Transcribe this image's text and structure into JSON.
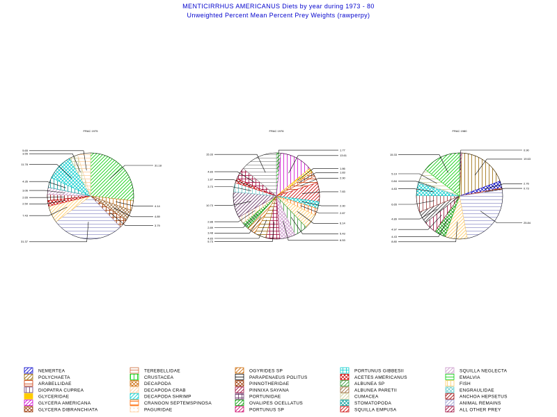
{
  "title": "MENTICIRRHUS AMERICANUS Diets by year during 1973 - 80",
  "subtitle": "Unweighted Percent Mean Percent Prey  Weights (rawperpy)",
  "chart_data": [
    {
      "type": "pie",
      "title": "FRAC 1975",
      "slices": [
        {
          "label": "CRUSTACEA",
          "value": 31.18,
          "color": "#00cc00"
        },
        {
          "label": "DECAPODA",
          "value": 4.14,
          "color": "#cc6600"
        },
        {
          "label": "ALBUNEA PARETII",
          "value": 4.89,
          "color": "#996633"
        },
        {
          "label": "PINNOTHERIDAE",
          "value": 3.79,
          "color": "#993300"
        },
        {
          "label": "ANIMAL REMAINS",
          "value": 31.37,
          "color": "#9999cc"
        },
        {
          "label": "FISH",
          "value": 7.43,
          "color": "#ffcc66"
        },
        {
          "label": "SQUILLA EMPUSA",
          "value": 2.5,
          "color": "#cc0000"
        },
        {
          "label": "ANCHOA HEPSETUS",
          "value": 2.65,
          "color": "#990000"
        },
        {
          "label": "SQUILLA NEGLECTA",
          "value": 3.06,
          "color": "#cc99cc"
        },
        {
          "label": "STOMATOPODA",
          "value": 4.35,
          "color": "#009999"
        },
        {
          "label": "PORTUNUS GIBBESII",
          "value": 11.78,
          "color": "#00cccc"
        },
        {
          "label": "CUMACEA",
          "value": 3.55,
          "color": "#cccc99"
        },
        {
          "label": "DECAPODA CRAB",
          "value": 5.65,
          "color": "#ffcc99"
        }
      ]
    },
    {
      "type": "pie",
      "title": "FRAC 1976",
      "slices": [
        {
          "label": "CRUSTACEA",
          "value": 1.77,
          "color": "#00cc00"
        },
        {
          "label": "GLYCERA AMERICANA",
          "value": 13.61,
          "color": "#cc00cc"
        },
        {
          "label": "GLYCERIDAE",
          "value": 1.86,
          "color": "#ffcc00"
        },
        {
          "label": "TEREBELLIDAE",
          "value": 1.83,
          "color": "#cc6633"
        },
        {
          "label": "ARABELLIDAE",
          "value": 2.9,
          "color": "#cc3300"
        },
        {
          "label": "ACETES AMERICANUS",
          "value": 7.83,
          "color": "#cc0000"
        },
        {
          "label": "DECAPODA SHRIMP",
          "value": 2.9,
          "color": "#00cccc"
        },
        {
          "label": "CRANGON SEPTEMSPINOSA",
          "value": 2.87,
          "color": "#ff6600"
        },
        {
          "label": "FISH",
          "value": 6.14,
          "color": "#ffcc66"
        },
        {
          "label": "ALBUNEA SP",
          "value": 5.43,
          "color": "#339933"
        },
        {
          "label": "SQUILLA NEGLECTA",
          "value": 6.53,
          "color": "#cc99cc"
        },
        {
          "label": "PINNIXA SAYANA",
          "value": 5.73,
          "color": "#990033"
        },
        {
          "label": "POLYCHAETA",
          "value": 4.83,
          "color": "#996600"
        },
        {
          "label": "OGYRIDES SP",
          "value": 3.48,
          "color": "#cc6600"
        },
        {
          "label": "OVALIPES OCELLATUS",
          "value": 2.89,
          "color": "#009900"
        },
        {
          "label": "PAGURIDAE",
          "value": 2.88,
          "color": "#ffcc99"
        },
        {
          "label": "PORTUNIDAE",
          "value": 10.73,
          "color": "#663366"
        },
        {
          "label": "ENGRAULIDAE",
          "value": 3.73,
          "color": "#66cccc"
        },
        {
          "label": "SQUILLA EMPUSA",
          "value": 1.87,
          "color": "#cc0000"
        },
        {
          "label": "ALL OTHER PREY",
          "value": 4.83,
          "color": "#990033"
        },
        {
          "label": "ANIMAL REMAINS",
          "value": 15.33,
          "color": "#999999"
        }
      ]
    },
    {
      "type": "pie",
      "title": "FRAC 1980",
      "slices": [
        {
          "label": "GLYCERA AMERICANA",
          "value": 0.9,
          "color": "#cc00cc"
        },
        {
          "label": "POLYCHAETA",
          "value": 19.63,
          "color": "#996600"
        },
        {
          "label": "NEMERTEA",
          "value": 2.76,
          "color": "#0000cc"
        },
        {
          "label": "ARABELLIDAE",
          "value": 0.73,
          "color": "#cc3300"
        },
        {
          "label": "ANIMAL REMAINS",
          "value": 25.84,
          "color": "#9999cc"
        },
        {
          "label": "FISH",
          "value": 8.8,
          "color": "#ffcc66"
        },
        {
          "label": "EMALVIA",
          "value": 4.43,
          "color": "#009900"
        },
        {
          "label": "ALL OTHER PREY",
          "value": 4.97,
          "color": "#990033"
        },
        {
          "label": "PARAPENAEUS POLITUS",
          "value": 4.89,
          "color": "#333333"
        },
        {
          "label": "DECAPODA",
          "value": 6.65,
          "color": "#993333"
        },
        {
          "label": "PORTUNUS GIBBESII",
          "value": 4.83,
          "color": "#00cccc"
        },
        {
          "label": "ENGRAULIDAE",
          "value": 0.84,
          "color": "#66cccc"
        },
        {
          "label": "CUMACEA",
          "value": 5.19,
          "color": "#cccc99"
        },
        {
          "label": "CRUSTACEA",
          "value": 15.33,
          "color": "#00cc00"
        }
      ]
    }
  ],
  "legend": [
    {
      "label": "NEMERTEA",
      "color": "#0000cc",
      "pattern": "diag"
    },
    {
      "label": "POLYCHAETA",
      "color": "#996600",
      "pattern": "diag"
    },
    {
      "label": "ARABELLIDAE",
      "color": "#cc3300",
      "pattern": "hlines"
    },
    {
      "label": "DIOPATRA CUPREA",
      "color": "#663366",
      "pattern": "vlines"
    },
    {
      "label": "GLYCERIDAE",
      "color": "#ffcc00",
      "pattern": "solid"
    },
    {
      "label": "GLYCERA AMERICANA",
      "color": "#cc00cc",
      "pattern": "diag"
    },
    {
      "label": "GLYCERA DIBRANCHIATA",
      "color": "#993300",
      "pattern": "cross"
    },
    {
      "label": "TEREBELLIDAE",
      "color": "#cc6633",
      "pattern": "hlines"
    },
    {
      "label": "CRUSTACEA",
      "color": "#00cc00",
      "pattern": "vlines"
    },
    {
      "label": "DECAPODA",
      "color": "#cc6600",
      "pattern": "cross"
    },
    {
      "label": "DECAPODA CRAB",
      "color": "#ffcc99",
      "pattern": "diag"
    },
    {
      "label": "DECAPODA SHRIMP",
      "color": "#00cccc",
      "pattern": "diag"
    },
    {
      "label": "CRANGON SEPTEMSPINOSA",
      "color": "#ff6600",
      "pattern": "hlines"
    },
    {
      "label": "PAGURIDAE",
      "color": "#ffcc99",
      "pattern": "dots"
    },
    {
      "label": "OGYRIDES SP",
      "color": "#cc6600",
      "pattern": "diag"
    },
    {
      "label": "PARAPENAEUS POLITUS",
      "color": "#000000",
      "pattern": "hlines"
    },
    {
      "label": "PINNOTHERIDAE",
      "color": "#993300",
      "pattern": "cross"
    },
    {
      "label": "PINNIXA SAYANA",
      "color": "#990033",
      "pattern": "diag"
    },
    {
      "label": "PORTUNIDAE",
      "color": "#663366",
      "pattern": "grid"
    },
    {
      "label": "OVALIPES OCELLATUS",
      "color": "#009900",
      "pattern": "diag"
    },
    {
      "label": "PORTUNUS SP",
      "color": "#cc0066",
      "pattern": "diag"
    },
    {
      "label": "PORTUNUS GIBBESII",
      "color": "#00cccc",
      "pattern": "grid"
    },
    {
      "label": "ACETES AMERICANUS",
      "color": "#cc0000",
      "pattern": "cross"
    },
    {
      "label": "ALBUNEA SP",
      "color": "#339933",
      "pattern": "diag"
    },
    {
      "label": "ALBUNEA PARETII",
      "color": "#996633",
      "pattern": "diag"
    },
    {
      "label": "CUMACEA",
      "color": "#cccc99",
      "pattern": "diag"
    },
    {
      "label": "STOMATOPODA",
      "color": "#009999",
      "pattern": "cross"
    },
    {
      "label": "SQUILLA EMPUSA",
      "color": "#cc0000",
      "pattern": "diag"
    },
    {
      "label": "SQUILLA NEGLECTA",
      "color": "#cc99cc",
      "pattern": "diag"
    },
    {
      "label": "EMALVIA",
      "color": "#00cc00",
      "pattern": "hlines"
    },
    {
      "label": "FISH",
      "color": "#ffcc66",
      "pattern": "vlines"
    },
    {
      "label": "ENGRAULIDAE",
      "color": "#66cccc",
      "pattern": "cross"
    },
    {
      "label": "ANCHOA HEPSETUS",
      "color": "#990000",
      "pattern": "diag"
    },
    {
      "label": "ANIMAL REMAINS",
      "color": "#9999cc",
      "pattern": "diag"
    },
    {
      "label": "ALL OTHER PREY",
      "color": "#990033",
      "pattern": "diag"
    }
  ]
}
